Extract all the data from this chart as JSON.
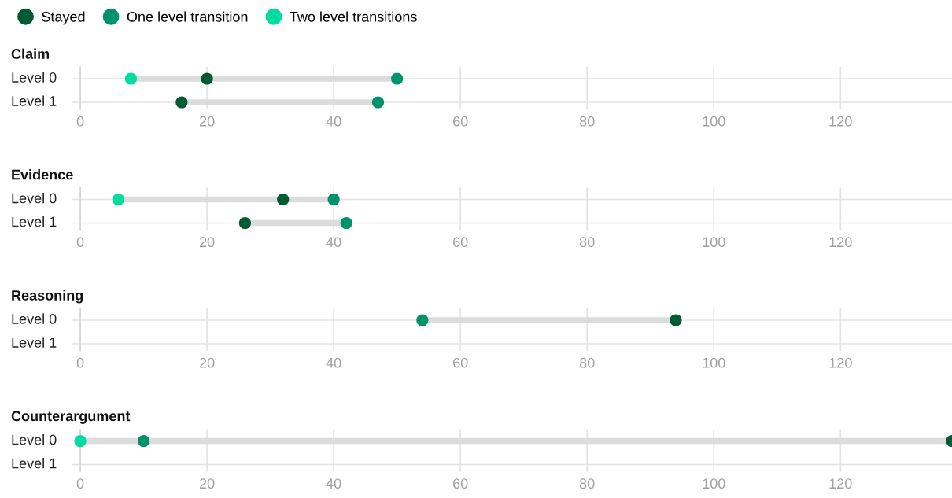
{
  "chart_data": [
    {
      "type": "scatter",
      "orientation": "horizontal",
      "title": "Claim",
      "categories": [
        "Level 0",
        "Level 1"
      ],
      "xlim": [
        -1.25,
        137.6
      ],
      "xticks": [
        0,
        20,
        40,
        60,
        80,
        100,
        120
      ],
      "grid": true,
      "legend": "top left",
      "marker": "circle",
      "series": [
        {
          "name": "Stayed",
          "color": "#005a32",
          "values": [
            20,
            16
          ]
        },
        {
          "name": "One level transition",
          "color": "#00936a",
          "values": [
            50,
            47
          ]
        },
        {
          "name": "Two level transitions",
          "color": "#00dba0",
          "values": [
            8,
            null
          ]
        }
      ]
    },
    {
      "type": "scatter",
      "orientation": "horizontal",
      "title": "Evidence",
      "categories": [
        "Level 0",
        "Level 1"
      ],
      "xlim": [
        -1.25,
        137.6
      ],
      "xticks": [
        0,
        20,
        40,
        60,
        80,
        100,
        120
      ],
      "grid": true,
      "marker": "circle",
      "series": [
        {
          "color": "#005a32",
          "values": [
            32,
            26
          ]
        },
        {
          "color": "#00936a",
          "values": [
            40,
            42
          ]
        },
        {
          "color": "#00dba0",
          "values": [
            6,
            null
          ]
        }
      ]
    },
    {
      "type": "scatter",
      "orientation": "horizontal",
      "title": "Reasoning",
      "categories": [
        "Level 0",
        "Level 1"
      ],
      "xlim": [
        -1.25,
        137.6
      ],
      "xticks": [
        0,
        20,
        40,
        60,
        80,
        100,
        120
      ],
      "grid": true,
      "marker": "circle",
      "series": [
        {
          "color": "#005a32",
          "values": [
            94,
            null
          ]
        },
        {
          "color": "#00936a",
          "values": [
            54,
            null
          ]
        }
      ]
    },
    {
      "type": "scatter",
      "orientation": "horizontal",
      "title": "Counterargument",
      "categories": [
        "Level 0",
        "Level 1"
      ],
      "xlim": [
        -1.25,
        137.6
      ],
      "xticks": [
        0,
        20,
        40,
        60,
        80,
        100,
        120
      ],
      "grid": true,
      "marker": "circle",
      "series": [
        {
          "color": "#005a32",
          "values": [
            137.6,
            null
          ]
        },
        {
          "color": "#00936a",
          "values": [
            10,
            null
          ]
        },
        {
          "color": "#00dba0",
          "values": [
            0,
            null
          ]
        }
      ]
    }
  ]
}
